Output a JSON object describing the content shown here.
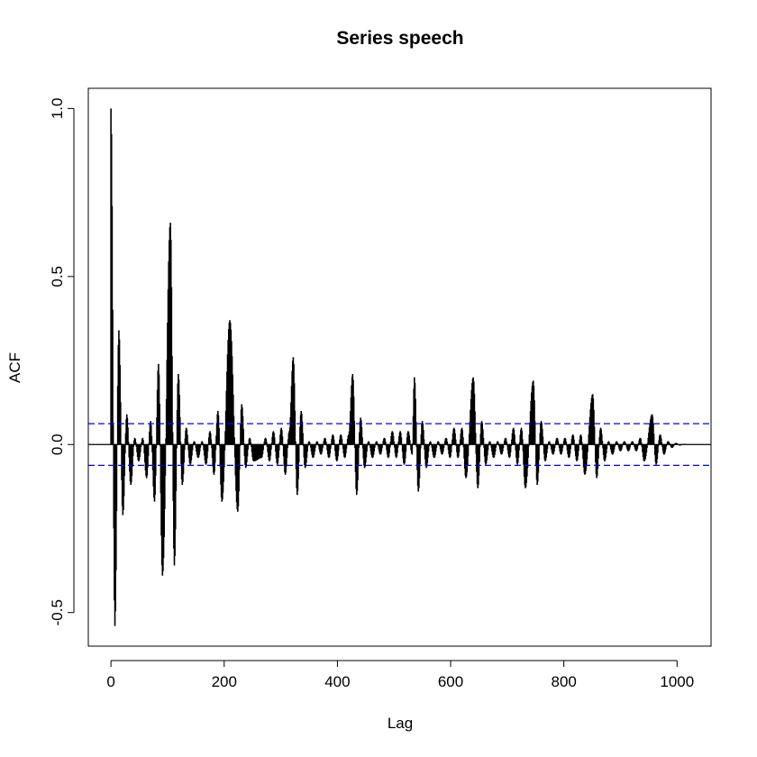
{
  "chart_data": {
    "type": "bar",
    "title": "Series  speech",
    "xlabel": "Lag",
    "ylabel": "ACF",
    "xlim": [
      -40,
      1060
    ],
    "ylim": [
      -0.6,
      1.06
    ],
    "x_ticks": [
      0,
      200,
      400,
      600,
      800,
      1000
    ],
    "y_ticks": [
      -0.5,
      0.0,
      0.5,
      1.0
    ],
    "x_tick_labels": [
      "0",
      "200",
      "400",
      "600",
      "800",
      "1000"
    ],
    "y_tick_labels": [
      "-0.5",
      "0.0",
      "0.5",
      "1.0"
    ],
    "confidence_band": 0.062,
    "zero_line": 0,
    "grid": false,
    "legend": "none",
    "lag_max": 1020,
    "envelope": {
      "description": "Positive and negative ACF envelope peaks (lag, acf) read from the plot",
      "peaks": [
        [
          0,
          1.0
        ],
        [
          7,
          -0.54
        ],
        [
          14,
          0.34
        ],
        [
          21,
          -0.21
        ],
        [
          28,
          0.09
        ],
        [
          35,
          -0.12
        ],
        [
          42,
          0.02
        ],
        [
          49,
          -0.05
        ],
        [
          56,
          0.02
        ],
        [
          63,
          -0.1
        ],
        [
          70,
          0.07
        ],
        [
          77,
          -0.17
        ],
        [
          84,
          0.24
        ],
        [
          91,
          -0.39
        ],
        [
          105,
          0.66
        ],
        [
          112,
          -0.36
        ],
        [
          119,
          0.21
        ],
        [
          126,
          -0.12
        ],
        [
          133,
          0.05
        ],
        [
          140,
          -0.06
        ],
        [
          147,
          0.01
        ],
        [
          154,
          -0.04
        ],
        [
          161,
          0.01
        ],
        [
          168,
          -0.06
        ],
        [
          175,
          0.04
        ],
        [
          182,
          -0.09
        ],
        [
          189,
          0.1
        ],
        [
          196,
          -0.17
        ],
        [
          210,
          0.37
        ],
        [
          224,
          -0.2
        ],
        [
          231,
          0.12
        ],
        [
          238,
          -0.07
        ],
        [
          245,
          0.02
        ],
        [
          252,
          -0.05
        ],
        [
          266,
          -0.04
        ],
        [
          273,
          0.02
        ],
        [
          280,
          -0.05
        ],
        [
          287,
          0.04
        ],
        [
          294,
          -0.06
        ],
        [
          301,
          0.05
        ],
        [
          308,
          -0.09
        ],
        [
          315,
          0.04
        ],
        [
          322,
          0.26
        ],
        [
          329,
          -0.15
        ],
        [
          336,
          0.1
        ],
        [
          343,
          -0.07
        ],
        [
          350,
          0.01
        ],
        [
          357,
          -0.04
        ],
        [
          364,
          0.01
        ],
        [
          371,
          -0.03
        ],
        [
          378,
          0.02
        ],
        [
          385,
          -0.04
        ],
        [
          392,
          0.03
        ],
        [
          399,
          -0.05
        ],
        [
          406,
          0.03
        ],
        [
          413,
          -0.04
        ],
        [
          420,
          0.03
        ],
        [
          427,
          0.21
        ],
        [
          434,
          -0.15
        ],
        [
          441,
          0.08
        ],
        [
          448,
          -0.07
        ],
        [
          455,
          0.01
        ],
        [
          462,
          -0.04
        ],
        [
          469,
          0.01
        ],
        [
          476,
          -0.03
        ],
        [
          483,
          0.02
        ],
        [
          490,
          -0.04
        ],
        [
          497,
          0.04
        ],
        [
          504,
          -0.04
        ],
        [
          511,
          0.04
        ],
        [
          518,
          -0.06
        ],
        [
          525,
          0.04
        ],
        [
          532,
          -0.03
        ],
        [
          536,
          0.2
        ],
        [
          543,
          -0.14
        ],
        [
          550,
          0.07
        ],
        [
          557,
          -0.07
        ],
        [
          564,
          0.01
        ],
        [
          571,
          -0.04
        ],
        [
          578,
          0.01
        ],
        [
          585,
          -0.03
        ],
        [
          592,
          0.02
        ],
        [
          599,
          -0.04
        ],
        [
          606,
          0.05
        ],
        [
          613,
          -0.04
        ],
        [
          620,
          0.05
        ],
        [
          627,
          -0.1
        ],
        [
          640,
          0.2
        ],
        [
          648,
          -0.13
        ],
        [
          655,
          0.07
        ],
        [
          662,
          -0.06
        ],
        [
          669,
          0.01
        ],
        [
          676,
          -0.04
        ],
        [
          683,
          0.01
        ],
        [
          690,
          -0.03
        ],
        [
          697,
          0.02
        ],
        [
          704,
          -0.04
        ],
        [
          711,
          0.05
        ],
        [
          718,
          -0.06
        ],
        [
          725,
          0.05
        ],
        [
          732,
          -0.13
        ],
        [
          746,
          0.19
        ],
        [
          753,
          -0.12
        ],
        [
          760,
          0.07
        ],
        [
          767,
          -0.05
        ],
        [
          774,
          0.01
        ],
        [
          781,
          -0.03
        ],
        [
          788,
          0.02
        ],
        [
          795,
          -0.03
        ],
        [
          802,
          0.02
        ],
        [
          809,
          -0.04
        ],
        [
          816,
          0.03
        ],
        [
          823,
          -0.05
        ],
        [
          830,
          0.03
        ],
        [
          837,
          -0.09
        ],
        [
          851,
          0.15
        ],
        [
          858,
          -0.1
        ],
        [
          865,
          0.05
        ],
        [
          872,
          -0.05
        ],
        [
          879,
          0.01
        ],
        [
          886,
          -0.03
        ],
        [
          893,
          0.01
        ],
        [
          900,
          -0.02
        ],
        [
          907,
          0.01
        ],
        [
          914,
          -0.02
        ],
        [
          921,
          0.01
        ],
        [
          928,
          -0.02
        ],
        [
          935,
          0.02
        ],
        [
          942,
          -0.05
        ],
        [
          956,
          0.09
        ],
        [
          963,
          -0.06
        ],
        [
          970,
          0.03
        ],
        [
          977,
          -0.03
        ],
        [
          984,
          0.01
        ],
        [
          991,
          -0.01
        ],
        [
          998,
          0.005
        ],
        [
          1005,
          -0.003
        ],
        [
          1012,
          0.002
        ],
        [
          1020,
          0.0
        ]
      ]
    },
    "colors": {
      "bars": "#000000",
      "band": "#0000ff",
      "zero": "#000000",
      "frame": "#000000"
    }
  }
}
